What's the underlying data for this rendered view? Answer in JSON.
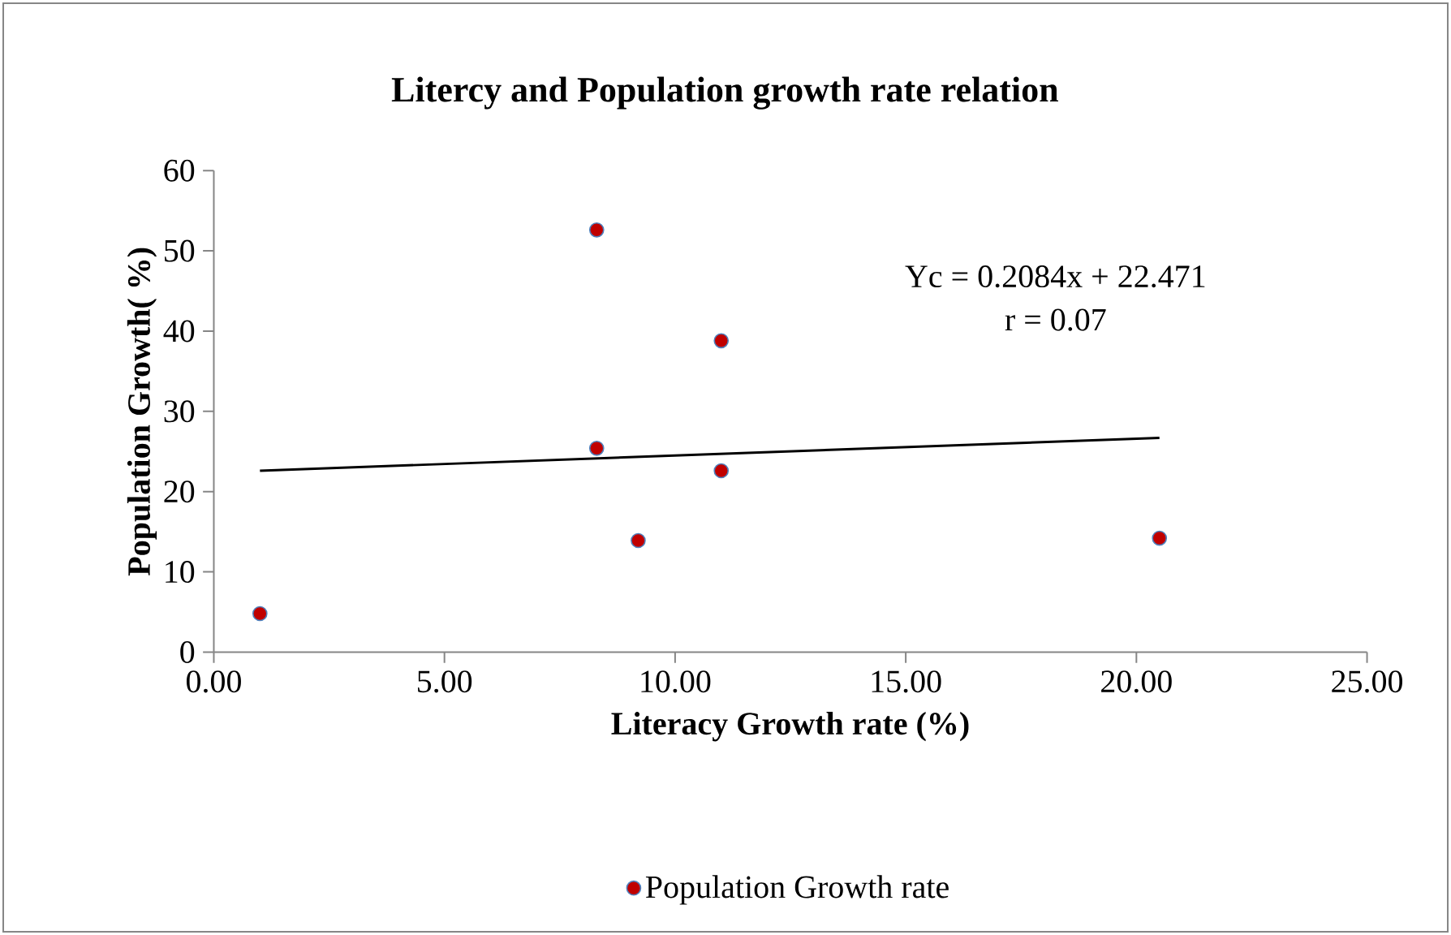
{
  "chart_data": {
    "type": "scatter",
    "title": "Litercy and Population  growth rate relation",
    "xlabel": "Literacy  Growth rate (%)",
    "ylabel": "Population Growth( %)",
    "xlim": [
      0,
      25
    ],
    "ylim": [
      0,
      60
    ],
    "xticks": [
      {
        "value": 0,
        "label": "0.00"
      },
      {
        "value": 5,
        "label": "5.00"
      },
      {
        "value": 10,
        "label": "10.00"
      },
      {
        "value": 15,
        "label": "15.00"
      },
      {
        "value": 20,
        "label": "20.00"
      },
      {
        "value": 25,
        "label": "25.00"
      }
    ],
    "yticks": [
      0,
      10,
      20,
      30,
      40,
      50,
      60
    ],
    "series": [
      {
        "name": "Population  Growth rate",
        "type": "scatter",
        "color": "#c00000",
        "x": [
          1.0,
          8.3,
          11.0,
          8.3,
          11.0,
          9.2,
          20.5
        ],
        "values": [
          4.8,
          52.6,
          38.8,
          25.4,
          22.6,
          13.9,
          14.2
        ]
      },
      {
        "type": "line",
        "color": "#000000",
        "line_style": "solid",
        "marker": "none",
        "x": [
          1.0,
          20.5
        ],
        "values": [
          22.6,
          26.7
        ]
      }
    ],
    "annotations": [
      "Yc = 0.2084x + 22.471",
      "r = 0.07"
    ],
    "legend": "bottom",
    "marker": "circle"
  }
}
